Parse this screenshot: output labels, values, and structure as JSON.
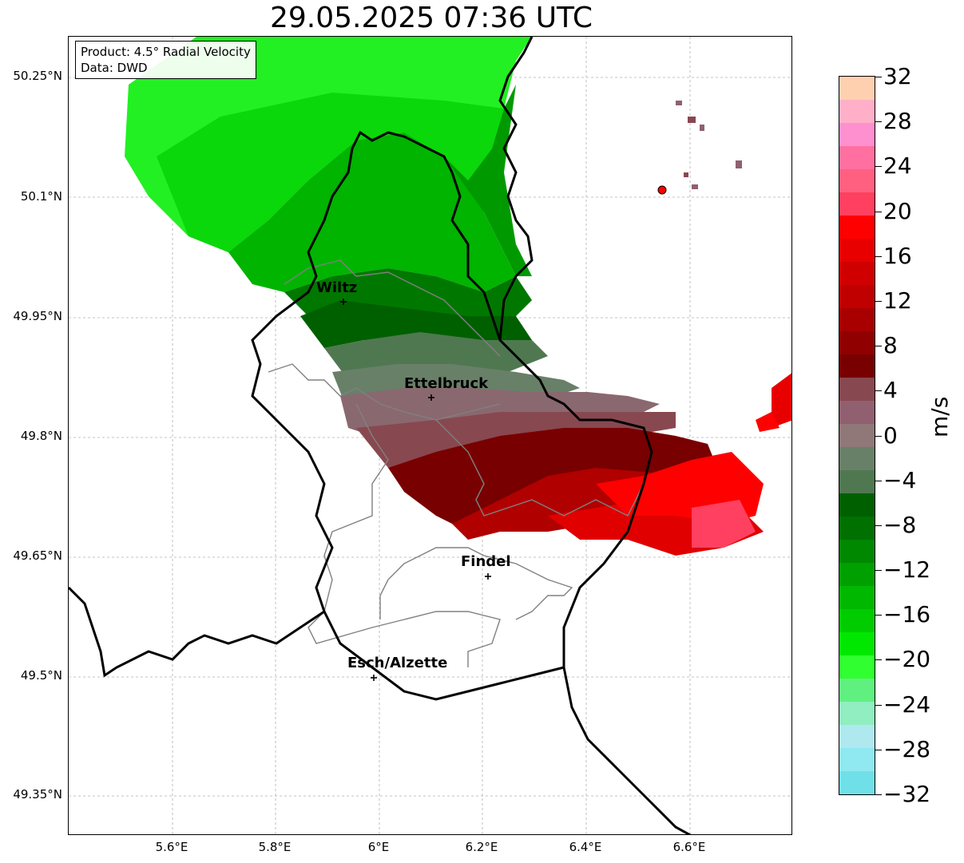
{
  "title": "29.05.2025 07:36 UTC",
  "info": {
    "product": "Product: 4.5° Radial Velocity",
    "source": "Data: DWD"
  },
  "axes": {
    "lat_labels": [
      "50.25°N",
      "50.1°N",
      "49.95°N",
      "49.8°N",
      "49.65°N",
      "49.5°N",
      "49.35°N"
    ],
    "lon_labels": [
      "5.6°E",
      "5.8°E",
      "6°E",
      "6.2°E",
      "6.4°E",
      "6.6°E"
    ]
  },
  "cities": [
    {
      "name": "Wiltz"
    },
    {
      "name": "Ettelbruck"
    },
    {
      "name": "Findel"
    },
    {
      "name": "Esch/Alzette"
    }
  ],
  "colorbar": {
    "unit": "m/s",
    "range": [
      -32,
      32
    ],
    "tick_labels": [
      "32",
      "28",
      "24",
      "20",
      "16",
      "12",
      "8",
      "4",
      "0",
      "−4",
      "−8",
      "−12",
      "−16",
      "−20",
      "−24",
      "−28",
      "−32"
    ],
    "colors_top_to_bottom": [
      "#FFD0B0",
      "#FFB0C8",
      "#FF90D0",
      "#FF70A0",
      "#FF6080",
      "#FF4060",
      "#FF0000",
      "#E80000",
      "#D00000",
      "#C00000",
      "#A80000",
      "#900000",
      "#780000",
      "#884850",
      "#906070",
      "#907878",
      "#688068",
      "#507850",
      "#006000",
      "#007000",
      "#008800",
      "#00A000",
      "#00B800",
      "#00CC00",
      "#00E800",
      "#30FF30",
      "#60F080",
      "#90EEC0",
      "#B0E8F0",
      "#90E8F0",
      "#70E0E8"
    ]
  }
}
